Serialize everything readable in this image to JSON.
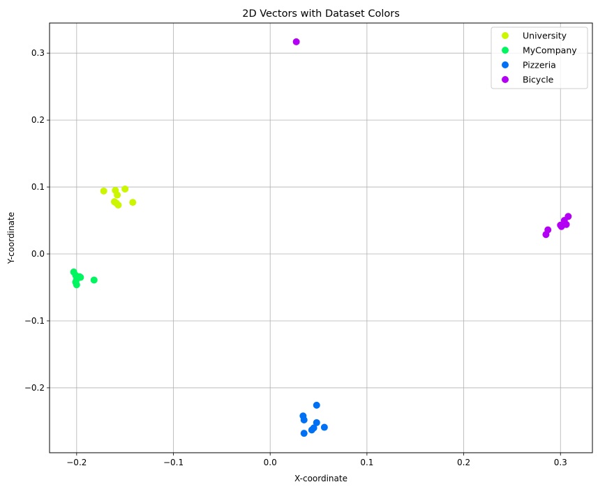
{
  "chart_data": {
    "type": "scatter",
    "title": "2D Vectors with Dataset Colors",
    "xlabel": "X-coordinate",
    "ylabel": "Y-coordinate",
    "xlim": [
      -0.228,
      0.333
    ],
    "ylim": [
      -0.297,
      0.345
    ],
    "xticks": [
      -0.2,
      -0.1,
      0.0,
      0.1,
      0.2,
      0.3
    ],
    "xtick_labels": [
      "−0.2",
      "−0.1",
      "0.0",
      "0.1",
      "0.2",
      "0.3"
    ],
    "yticks": [
      -0.2,
      -0.1,
      0.0,
      0.1,
      0.2,
      0.3
    ],
    "ytick_labels": [
      "−0.2",
      "−0.1",
      "0.0",
      "0.1",
      "0.2",
      "0.3"
    ],
    "grid": true,
    "legend_position": "top-right",
    "series": [
      {
        "name": "University",
        "color": "#ccf500",
        "points": [
          [
            -0.172,
            0.094
          ],
          [
            -0.16,
            0.095
          ],
          [
            -0.15,
            0.097
          ],
          [
            -0.158,
            0.088
          ],
          [
            -0.161,
            0.078
          ],
          [
            -0.157,
            0.073
          ],
          [
            -0.142,
            0.077
          ],
          [
            -0.159,
            0.076
          ]
        ]
      },
      {
        "name": "MyCompany",
        "color": "#00f55e",
        "points": [
          [
            -0.203,
            -0.027
          ],
          [
            -0.201,
            -0.032
          ],
          [
            -0.197,
            -0.034
          ],
          [
            -0.196,
            -0.035
          ],
          [
            -0.2,
            -0.038
          ],
          [
            -0.201,
            -0.042
          ],
          [
            -0.2,
            -0.046
          ],
          [
            -0.182,
            -0.039
          ]
        ]
      },
      {
        "name": "Pizzeria",
        "color": "#0070f5",
        "points": [
          [
            0.048,
            -0.226
          ],
          [
            0.034,
            -0.242
          ],
          [
            0.035,
            -0.248
          ],
          [
            0.048,
            -0.252
          ],
          [
            0.056,
            -0.259
          ],
          [
            0.045,
            -0.26
          ],
          [
            0.043,
            -0.263
          ],
          [
            0.035,
            -0.268
          ]
        ]
      },
      {
        "name": "Bicycle",
        "color": "#b300f5",
        "points": [
          [
            0.027,
            0.317
          ],
          [
            0.308,
            0.056
          ],
          [
            0.304,
            0.05
          ],
          [
            0.3,
            0.043
          ],
          [
            0.306,
            0.044
          ],
          [
            0.301,
            0.041
          ],
          [
            0.287,
            0.036
          ],
          [
            0.285,
            0.029
          ]
        ]
      }
    ]
  }
}
